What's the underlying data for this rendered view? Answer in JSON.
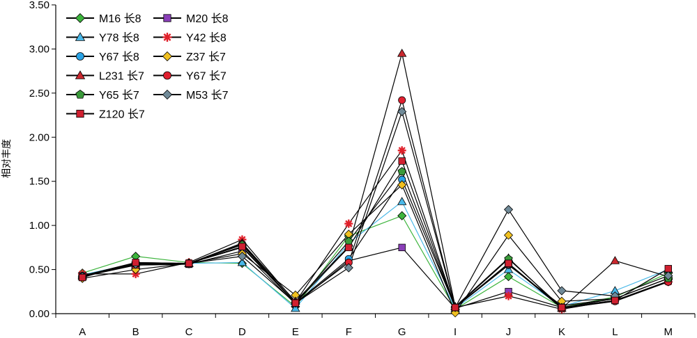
{
  "chart_data": {
    "type": "line",
    "title": "",
    "xlabel": "",
    "ylabel": "相对丰度",
    "categories": [
      "A",
      "B",
      "C",
      "D",
      "E",
      "F",
      "G",
      "I",
      "J",
      "K",
      "L",
      "M"
    ],
    "ylim": [
      0,
      3.5
    ],
    "yticks": [
      "0.00",
      "0.50",
      "1.00",
      "1.50",
      "2.00",
      "2.50",
      "3.00",
      "3.50"
    ],
    "grid": false,
    "legend_position": "top-left",
    "series": [
      {
        "name": "M16 长8",
        "marker": "diamond",
        "color": "#3cb43c",
        "line_color": "#3cb43c",
        "values": [
          0.46,
          0.65,
          0.58,
          0.57,
          0.08,
          0.88,
          1.11,
          0.05,
          0.42,
          0.07,
          0.19,
          0.46
        ]
      },
      {
        "name": "M20 长8",
        "marker": "square",
        "color": "#8a3fb8",
        "line_color": "#000000",
        "values": [
          0.43,
          0.55,
          0.56,
          0.71,
          0.11,
          0.6,
          0.75,
          0.06,
          0.25,
          0.07,
          0.15,
          0.37
        ]
      },
      {
        "name": "Y78 长8",
        "marker": "triangle",
        "color": "#49b8e8",
        "line_color": "#49b8e8",
        "values": [
          0.44,
          0.57,
          0.57,
          0.58,
          0.06,
          0.8,
          1.27,
          0.06,
          0.5,
          0.08,
          0.26,
          0.5
        ]
      },
      {
        "name": "Y42 长8",
        "marker": "asterisk",
        "color": "#e0202a",
        "line_color": "#000000",
        "values": [
          0.45,
          0.45,
          0.58,
          0.84,
          0.13,
          1.02,
          1.85,
          0.07,
          0.2,
          0.05,
          0.15,
          0.36
        ]
      },
      {
        "name": "Y67 长8",
        "marker": "circle",
        "color": "#2aa3e6",
        "line_color": "#000000",
        "values": [
          0.43,
          0.58,
          0.57,
          0.75,
          0.12,
          0.62,
          1.52,
          0.07,
          0.55,
          0.09,
          0.17,
          0.4
        ]
      },
      {
        "name": "Z37 长7",
        "marker": "diamond",
        "color": "#f0c020",
        "line_color": "#000000",
        "values": [
          0.4,
          0.5,
          0.57,
          0.68,
          0.21,
          0.9,
          1.46,
          0.01,
          0.89,
          0.14,
          0.17,
          0.4
        ]
      },
      {
        "name": "L231 长7",
        "marker": "triangle",
        "color": "#c8282e",
        "line_color": "#000000",
        "values": [
          0.42,
          0.55,
          0.57,
          0.8,
          0.14,
          0.76,
          2.95,
          0.08,
          0.63,
          0.06,
          0.6,
          0.42
        ]
      },
      {
        "name": "Y67 长7",
        "marker": "circle",
        "color": "#e02030",
        "line_color": "#000000",
        "values": [
          0.42,
          0.57,
          0.56,
          0.79,
          0.12,
          0.58,
          2.42,
          0.07,
          0.56,
          0.06,
          0.14,
          0.36
        ]
      },
      {
        "name": "Y65 长7",
        "marker": "pentagon",
        "color": "#3a9a3a",
        "line_color": "#000000",
        "values": [
          0.42,
          0.57,
          0.57,
          0.78,
          0.12,
          0.82,
          1.61,
          0.07,
          0.62,
          0.07,
          0.17,
          0.4
        ]
      },
      {
        "name": "M53 长7",
        "marker": "diamond",
        "color": "#708a98",
        "line_color": "#000000",
        "values": [
          0.42,
          0.56,
          0.57,
          0.65,
          0.12,
          0.52,
          2.29,
          0.07,
          1.18,
          0.26,
          0.2,
          0.43
        ]
      },
      {
        "name": "Z120 长7",
        "marker": "square",
        "color": "#d02030",
        "line_color": "#000000",
        "values": [
          0.41,
          0.58,
          0.57,
          0.76,
          0.12,
          0.75,
          1.73,
          0.07,
          0.57,
          0.07,
          0.15,
          0.51
        ]
      }
    ]
  }
}
